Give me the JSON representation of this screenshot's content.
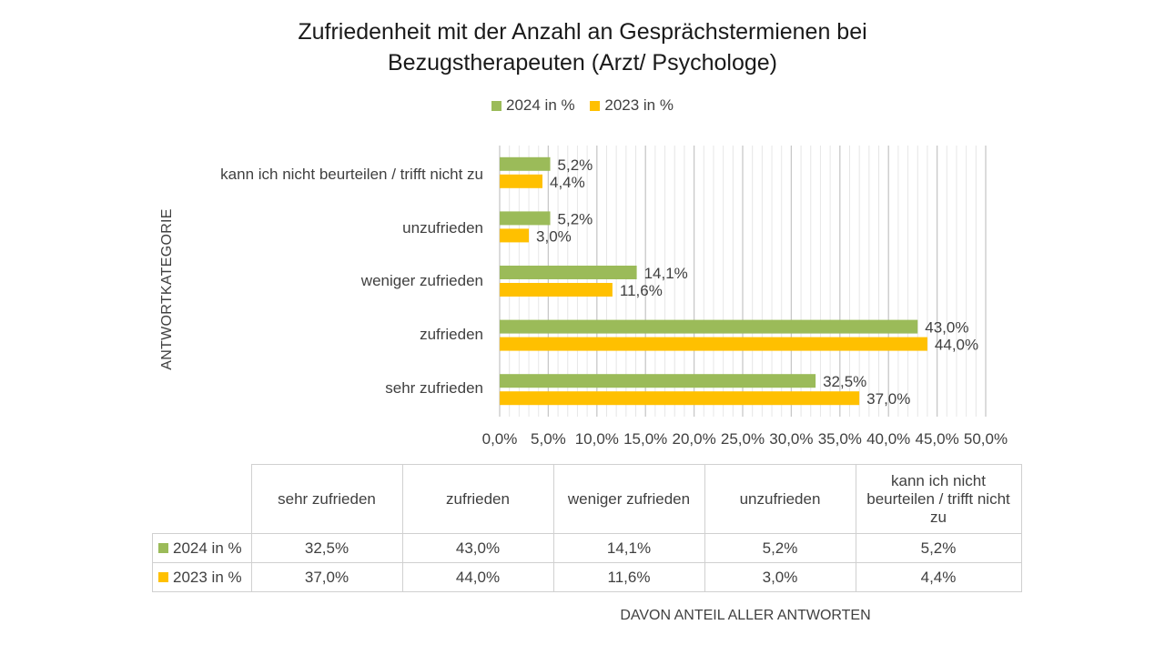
{
  "chart_data": {
    "type": "bar",
    "orientation": "horizontal",
    "title_line1": "Zufriedenheit mit der Anzahl an Gesprächstermienen bei",
    "title_line2": "Bezugstherapeuten (Arzt/ Psychologe)",
    "ylabel": "ANTWORTKATEGORIE",
    "xlabel": "DAVON ANTEIL ALLER ANTWORTEN",
    "categories": [
      "sehr zufrieden",
      "zufrieden",
      "weniger zufrieden",
      "unzufrieden",
      "kann ich nicht beurteilen / trifft nicht zu"
    ],
    "table_headers": [
      "sehr zufrieden",
      "zufrieden",
      "weniger zufrieden",
      "unzufrieden",
      "kann ich nicht beurteilen / trifft nicht zu"
    ],
    "series": [
      {
        "name": "2024 in %",
        "color": "#9bbb59",
        "values": [
          32.5,
          43.0,
          14.1,
          5.2,
          5.2
        ],
        "labels": [
          "32,5%",
          "43,0%",
          "14,1%",
          "5,2%",
          "5,2%"
        ]
      },
      {
        "name": "2023 in %",
        "color": "#ffc000",
        "values": [
          37.0,
          44.0,
          11.6,
          3.0,
          4.4
        ],
        "labels": [
          "37,0%",
          "44,0%",
          "11,6%",
          "3,0%",
          "4,4%"
        ]
      }
    ],
    "xlim": [
      0,
      50
    ],
    "x_ticks": [
      "0,0%",
      "5,0%",
      "10,0%",
      "15,0%",
      "20,0%",
      "25,0%",
      "30,0%",
      "35,0%",
      "40,0%",
      "45,0%",
      "50,0%"
    ],
    "grid": true,
    "legend_position": "top"
  }
}
